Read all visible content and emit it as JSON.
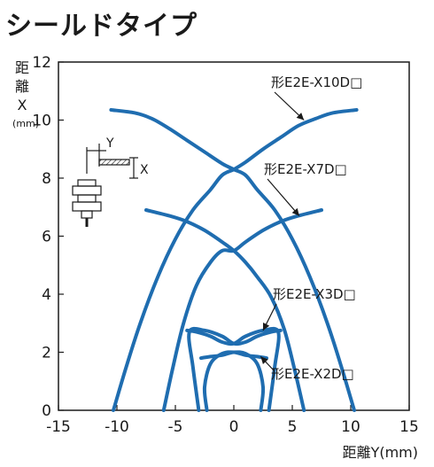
{
  "page_title": "シールドタイプ",
  "chart_data": {
    "type": "line",
    "title": "シールドタイプ",
    "ylabel_chars": [
      "距",
      "離",
      "X",
      "(mm)"
    ],
    "xlabel": "距離Y(mm)",
    "xlim": [
      -15,
      15
    ],
    "ylim": [
      0,
      12
    ],
    "x_ticks": [
      -15,
      -10,
      -5,
      0,
      5,
      10,
      15
    ],
    "y_ticks": [
      0,
      2,
      4,
      6,
      8,
      10,
      12
    ],
    "grid": false,
    "series": [
      {
        "name": "形E2E-X10D□",
        "label_at": {
          "x": 6.2,
          "y": 11.0
        },
        "points": [
          [
            -10.3,
            0
          ],
          [
            -9.2,
            1.5
          ],
          [
            -8.0,
            3.0
          ],
          [
            -6.5,
            4.6
          ],
          [
            -5.0,
            5.9
          ],
          [
            -3.5,
            6.9
          ],
          [
            -2.0,
            7.6
          ],
          [
            -1.0,
            8.1
          ],
          [
            0,
            8.3
          ],
          [
            1.0,
            8.55
          ],
          [
            2.5,
            9.0
          ],
          [
            4.0,
            9.4
          ],
          [
            5.5,
            9.8
          ],
          [
            7.0,
            10.05
          ],
          [
            8.5,
            10.25
          ],
          [
            10.5,
            10.35
          ]
        ],
        "mirror_points": [
          [
            -10.5,
            10.35
          ],
          [
            -8.5,
            10.25
          ],
          [
            -7.0,
            10.05
          ],
          [
            -5.5,
            9.7
          ],
          [
            -4.0,
            9.3
          ],
          [
            -2.5,
            8.9
          ],
          [
            -1.0,
            8.5
          ],
          [
            0,
            8.3
          ],
          [
            1.0,
            8.1
          ],
          [
            2.0,
            7.6
          ],
          [
            3.5,
            6.9
          ],
          [
            5.0,
            5.9
          ],
          [
            6.5,
            4.6
          ],
          [
            8.0,
            3.0
          ],
          [
            9.2,
            1.5
          ],
          [
            10.3,
            0
          ]
        ]
      },
      {
        "name": "形E2E-X7D□",
        "label_at": {
          "x": 5.2,
          "y": 7.8
        },
        "points": [
          [
            -6.0,
            0
          ],
          [
            -5.2,
            1.5
          ],
          [
            -4.3,
            3.0
          ],
          [
            -3.2,
            4.3
          ],
          [
            -2.0,
            5.1
          ],
          [
            -1.0,
            5.5
          ],
          [
            0,
            5.5
          ],
          [
            1.0,
            5.8
          ],
          [
            2.5,
            6.2
          ],
          [
            4.0,
            6.5
          ],
          [
            5.5,
            6.7
          ],
          [
            7.5,
            6.9
          ]
        ],
        "mirror_points": [
          [
            -7.5,
            6.9
          ],
          [
            -5.5,
            6.7
          ],
          [
            -4.0,
            6.5
          ],
          [
            -2.5,
            6.2
          ],
          [
            -1.0,
            5.8
          ],
          [
            0,
            5.5
          ],
          [
            1.0,
            5.1
          ],
          [
            2.0,
            4.6
          ],
          [
            3.2,
            3.9
          ],
          [
            4.3,
            2.8
          ],
          [
            5.2,
            1.4
          ],
          [
            6.0,
            0
          ]
        ]
      },
      {
        "name": "形E2E-X3D□",
        "label_at": {
          "x": 5.2,
          "y": 3.8
        },
        "points": [
          [
            -3.0,
            0
          ],
          [
            -3.5,
            1.5
          ],
          [
            -3.8,
            2.7
          ],
          [
            -2.5,
            2.75
          ],
          [
            -1.0,
            2.55
          ],
          [
            0,
            2.3
          ],
          [
            1.0,
            2.35
          ],
          [
            2.0,
            2.55
          ],
          [
            3.2,
            2.7
          ],
          [
            4.0,
            2.75
          ]
        ],
        "mirror_points": [
          [
            -4.0,
            2.75
          ],
          [
            -3.2,
            2.7
          ],
          [
            -2.0,
            2.55
          ],
          [
            -1.0,
            2.35
          ],
          [
            0,
            2.3
          ],
          [
            1.0,
            2.55
          ],
          [
            2.5,
            2.75
          ],
          [
            3.8,
            2.7
          ],
          [
            3.5,
            1.5
          ],
          [
            3.0,
            0
          ]
        ]
      },
      {
        "name": "形E2E-X2D□",
        "label_at": {
          "x": 5.2,
          "y": 1.1
        },
        "points": [
          [
            -2.3,
            0
          ],
          [
            -2.5,
            0.8
          ],
          [
            -2.0,
            1.6
          ],
          [
            -1.0,
            1.95
          ],
          [
            0,
            2.0
          ],
          [
            1.0,
            1.9
          ],
          [
            2.0,
            1.85
          ],
          [
            2.8,
            1.8
          ]
        ],
        "mirror_points": [
          [
            -2.8,
            1.8
          ],
          [
            -2.0,
            1.85
          ],
          [
            -1.0,
            1.9
          ],
          [
            0,
            2.0
          ],
          [
            1.0,
            1.95
          ],
          [
            2.0,
            1.6
          ],
          [
            2.5,
            0.8
          ],
          [
            2.3,
            0
          ]
        ]
      }
    ]
  },
  "diagram": {
    "label_y": "Y",
    "label_x": "X"
  }
}
